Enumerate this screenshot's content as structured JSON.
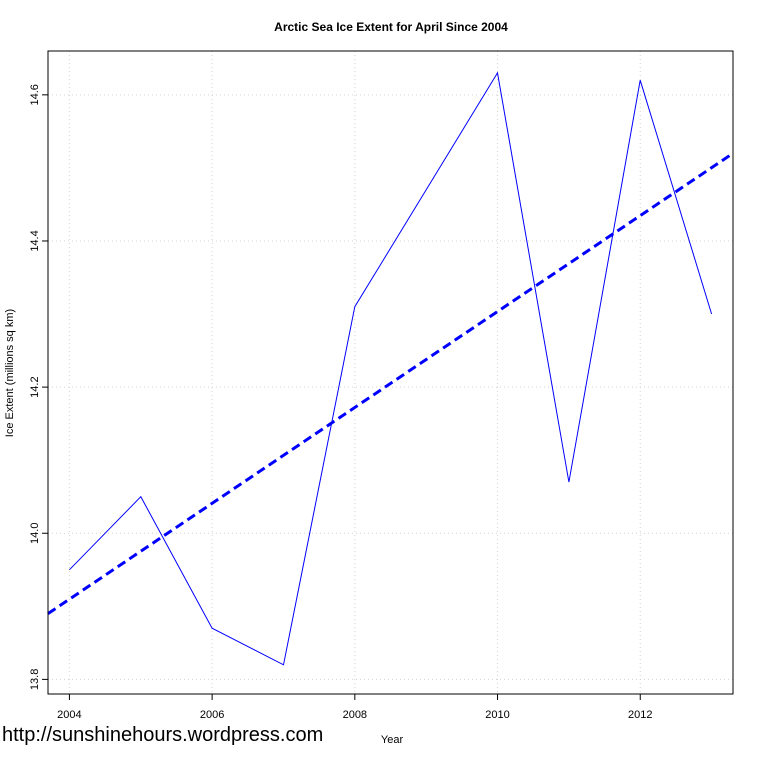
{
  "chart_data": {
    "type": "line",
    "title": "Arctic Sea Ice Extent for April Since 2004",
    "xlabel": "Year",
    "ylabel": "Ice Extent (millions sq km)",
    "xlim": [
      2003.7,
      2013.3
    ],
    "ylim": [
      13.78,
      14.66
    ],
    "x_ticks": [
      2004,
      2006,
      2008,
      2010,
      2012
    ],
    "y_ticks": [
      13.8,
      14.0,
      14.2,
      14.4,
      14.6
    ],
    "grid": true,
    "series": [
      {
        "style": "solid",
        "color": "#0000ff",
        "x": [
          2004,
          2005,
          2006,
          2007,
          2008,
          2009,
          2010,
          2011,
          2012,
          2013
        ],
        "y": [
          13.95,
          14.05,
          13.87,
          13.82,
          14.31,
          14.47,
          14.63,
          14.07,
          14.62,
          14.3
        ]
      },
      {
        "style": "dashed",
        "color": "#0000ff",
        "x": [
          2003.7,
          2013.3
        ],
        "y": [
          13.89,
          14.52
        ]
      }
    ]
  },
  "watermark": "http://sunshinehours.wordpress.com"
}
